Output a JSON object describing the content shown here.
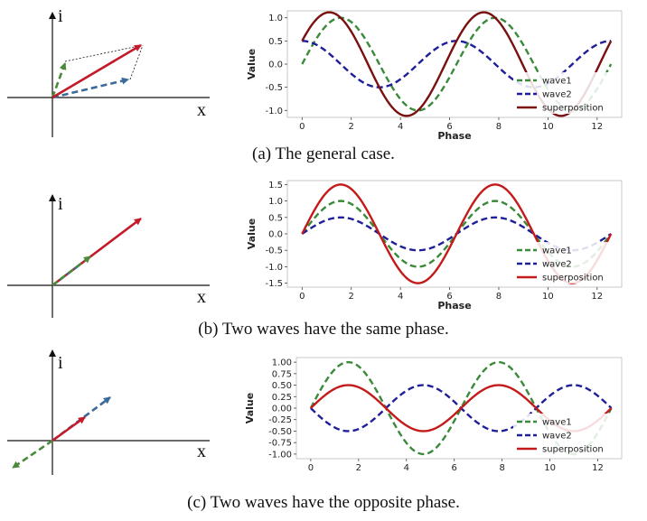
{
  "colors": {
    "wave1": "#3a8a3a",
    "wave2": "#1f1f9a",
    "superposition_a": "#7a1010",
    "superposition_bc": "#c41a1a",
    "vector_red": "#c41a2a",
    "vector_green": "#4a8a3a",
    "vector_blue": "#3a6a9a"
  },
  "axis_letters": {
    "y": "i",
    "x": "x"
  },
  "panels": [
    {
      "caption": "(a) The general case."
    },
    {
      "caption": "(b) Two waves have the same phase."
    },
    {
      "caption": "(c) Two waves have the opposite phase."
    }
  ],
  "chart_data": [
    {
      "type": "line",
      "xlabel": "Phase",
      "ylabel": "Value",
      "xlim": [
        -0.6,
        13
      ],
      "ylim": [
        -1.15,
        1.15
      ],
      "xticks": [
        0,
        2,
        4,
        6,
        8,
        10,
        12
      ],
      "xtick_labels": [
        "0",
        "2",
        "4",
        "6",
        "8",
        "10",
        "12"
      ],
      "yticks": [
        1.0,
        0.5,
        0.0,
        -0.5,
        -1.0
      ],
      "ytick_labels": [
        "1.0",
        "0.5",
        "0.0",
        "-0.5",
        "-1.0"
      ],
      "legend_position": "lower-right",
      "grid": false,
      "series": [
        {
          "name": "wave1",
          "amplitude": 1.0,
          "phase": 0.0,
          "style": "dashed",
          "color": "#3a8a3a"
        },
        {
          "name": "wave2",
          "amplitude": 0.5,
          "phase": 1.5708,
          "style": "dashed",
          "color": "#1f1f9a"
        },
        {
          "name": "superposition",
          "amplitude": 1.118,
          "phase": 0.4636,
          "style": "solid",
          "color": "#7a1010"
        }
      ]
    },
    {
      "type": "line",
      "xlabel": "Phase",
      "ylabel": "Value",
      "xlim": [
        -0.6,
        13
      ],
      "ylim": [
        -1.62,
        1.62
      ],
      "xticks": [
        0,
        2,
        4,
        6,
        8,
        10,
        12
      ],
      "xtick_labels": [
        "0",
        "2",
        "4",
        "6",
        "8",
        "10",
        "12"
      ],
      "yticks": [
        1.5,
        1.0,
        0.5,
        0.0,
        -0.5,
        -1.0,
        -1.5
      ],
      "ytick_labels": [
        "1.5",
        "1.0",
        "0.5",
        "0.0",
        "-0.5",
        "-1.0",
        "-1.5"
      ],
      "legend_position": "lower-right",
      "grid": false,
      "series": [
        {
          "name": "wave1",
          "amplitude": 1.0,
          "phase": 0.0,
          "style": "dashed",
          "color": "#3a8a3a"
        },
        {
          "name": "wave2",
          "amplitude": 0.5,
          "phase": 0.0,
          "style": "dashed",
          "color": "#1f1f9a"
        },
        {
          "name": "superposition",
          "amplitude": 1.5,
          "phase": 0.0,
          "style": "solid",
          "color": "#c41a1a"
        }
      ]
    },
    {
      "type": "line",
      "xlabel": "",
      "ylabel": "Value",
      "xlim": [
        -0.6,
        13
      ],
      "ylim": [
        -1.1,
        1.1
      ],
      "xticks": [
        0,
        2,
        4,
        6,
        8,
        10,
        12
      ],
      "xtick_labels": [
        "0",
        "2",
        "4",
        "6",
        "8",
        "10",
        "12"
      ],
      "yticks": [
        1.0,
        0.75,
        0.5,
        0.25,
        0.0,
        -0.25,
        -0.5,
        -0.75,
        -1.0
      ],
      "ytick_labels": [
        "1.00",
        "0.75",
        "0.50",
        "0.25",
        "0.00",
        "-0.25",
        "-0.50",
        "-0.75",
        "-1.00"
      ],
      "legend_position": "lower-right",
      "grid": false,
      "series": [
        {
          "name": "wave1",
          "amplitude": 1.0,
          "phase": 0.0,
          "style": "dashed",
          "color": "#3a8a3a"
        },
        {
          "name": "wave2",
          "amplitude": 0.5,
          "phase": 3.1416,
          "style": "dashed",
          "color": "#1f1f9a"
        },
        {
          "name": "superposition",
          "amplitude": 0.5,
          "phase": 0.0,
          "style": "solid",
          "color": "#c41a1a"
        }
      ]
    }
  ]
}
